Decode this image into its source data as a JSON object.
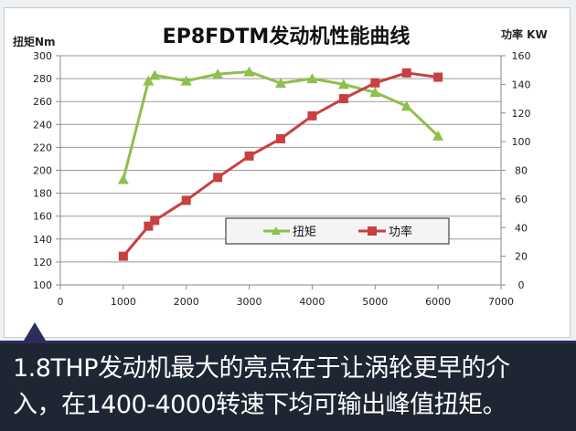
{
  "chart_data": {
    "type": "line",
    "title": "EP8FDTM发动机性能曲线",
    "ylabel": "扭矩Nm",
    "y2label": "功率 KW",
    "xlim": [
      0,
      7000
    ],
    "ylim": [
      100,
      300
    ],
    "y2lim": [
      0,
      160
    ],
    "xticks": [
      0,
      1000,
      2000,
      3000,
      4000,
      5000,
      6000,
      7000
    ],
    "yticks": [
      100,
      120,
      140,
      160,
      180,
      200,
      220,
      240,
      260,
      280,
      300
    ],
    "y2ticks": [
      0,
      20,
      40,
      60,
      80,
      100,
      120,
      140,
      160
    ],
    "grid": true,
    "legend_position": "center-bottom",
    "series": [
      {
        "name": "扭矩",
        "axis": "left",
        "color": "#8dc04c",
        "marker": "triangle",
        "x": [
          1000,
          1400,
          1500,
          2000,
          2500,
          3000,
          3500,
          4000,
          4500,
          5000,
          5500,
          6000
        ],
        "values": [
          192,
          278,
          283,
          278,
          284,
          286,
          276,
          280,
          275,
          268,
          256,
          230
        ]
      },
      {
        "name": "功率",
        "axis": "right",
        "color": "#c84040",
        "marker": "square",
        "x": [
          1000,
          1400,
          1500,
          2000,
          2500,
          3000,
          3500,
          4000,
          4500,
          5000,
          5500,
          6000
        ],
        "values": [
          20,
          41,
          45,
          59,
          75,
          90,
          102,
          118,
          130,
          141,
          148,
          145
        ]
      }
    ]
  },
  "caption": {
    "line1": "1.8THP发动机最大的亮点在于让涡轮更早的介",
    "line2": "入，在1400-4000转速下均可输出峰值扭矩。"
  }
}
